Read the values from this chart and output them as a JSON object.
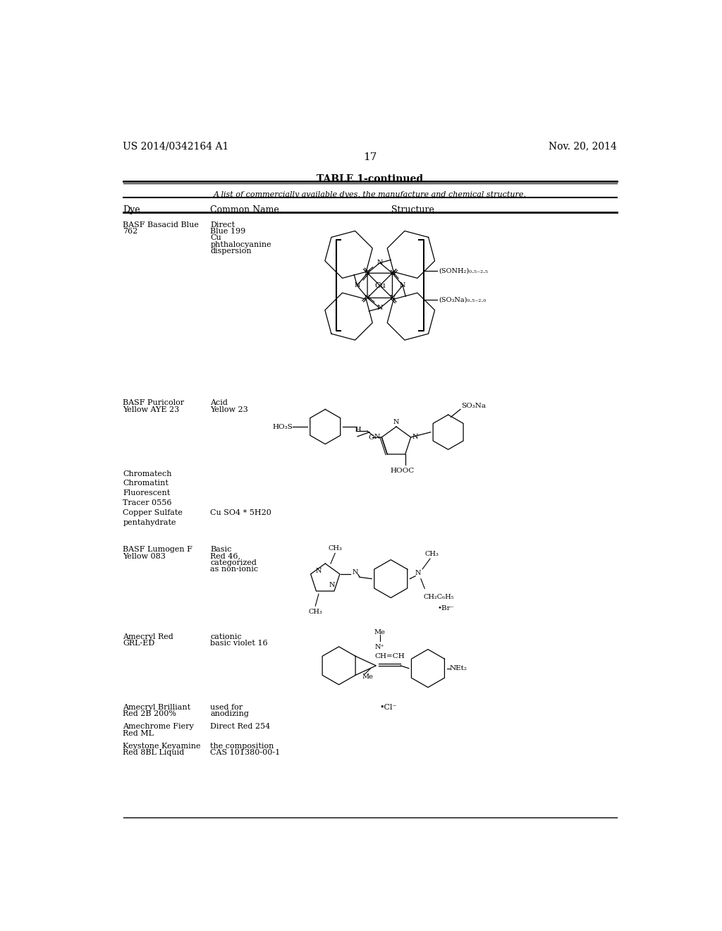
{
  "page_number": "17",
  "patent_number": "US 2014/0342164 A1",
  "patent_date": "Nov. 20, 2014",
  "table_title": "TABLE 1-continued",
  "table_caption": "A list of commercially available dyes, the manufacture and chemical structure.",
  "col_headers": [
    "Dye",
    "Common Name",
    "Structure"
  ],
  "bg_color": "#ffffff",
  "text_color": "#000000",
  "line_color": "#000000"
}
